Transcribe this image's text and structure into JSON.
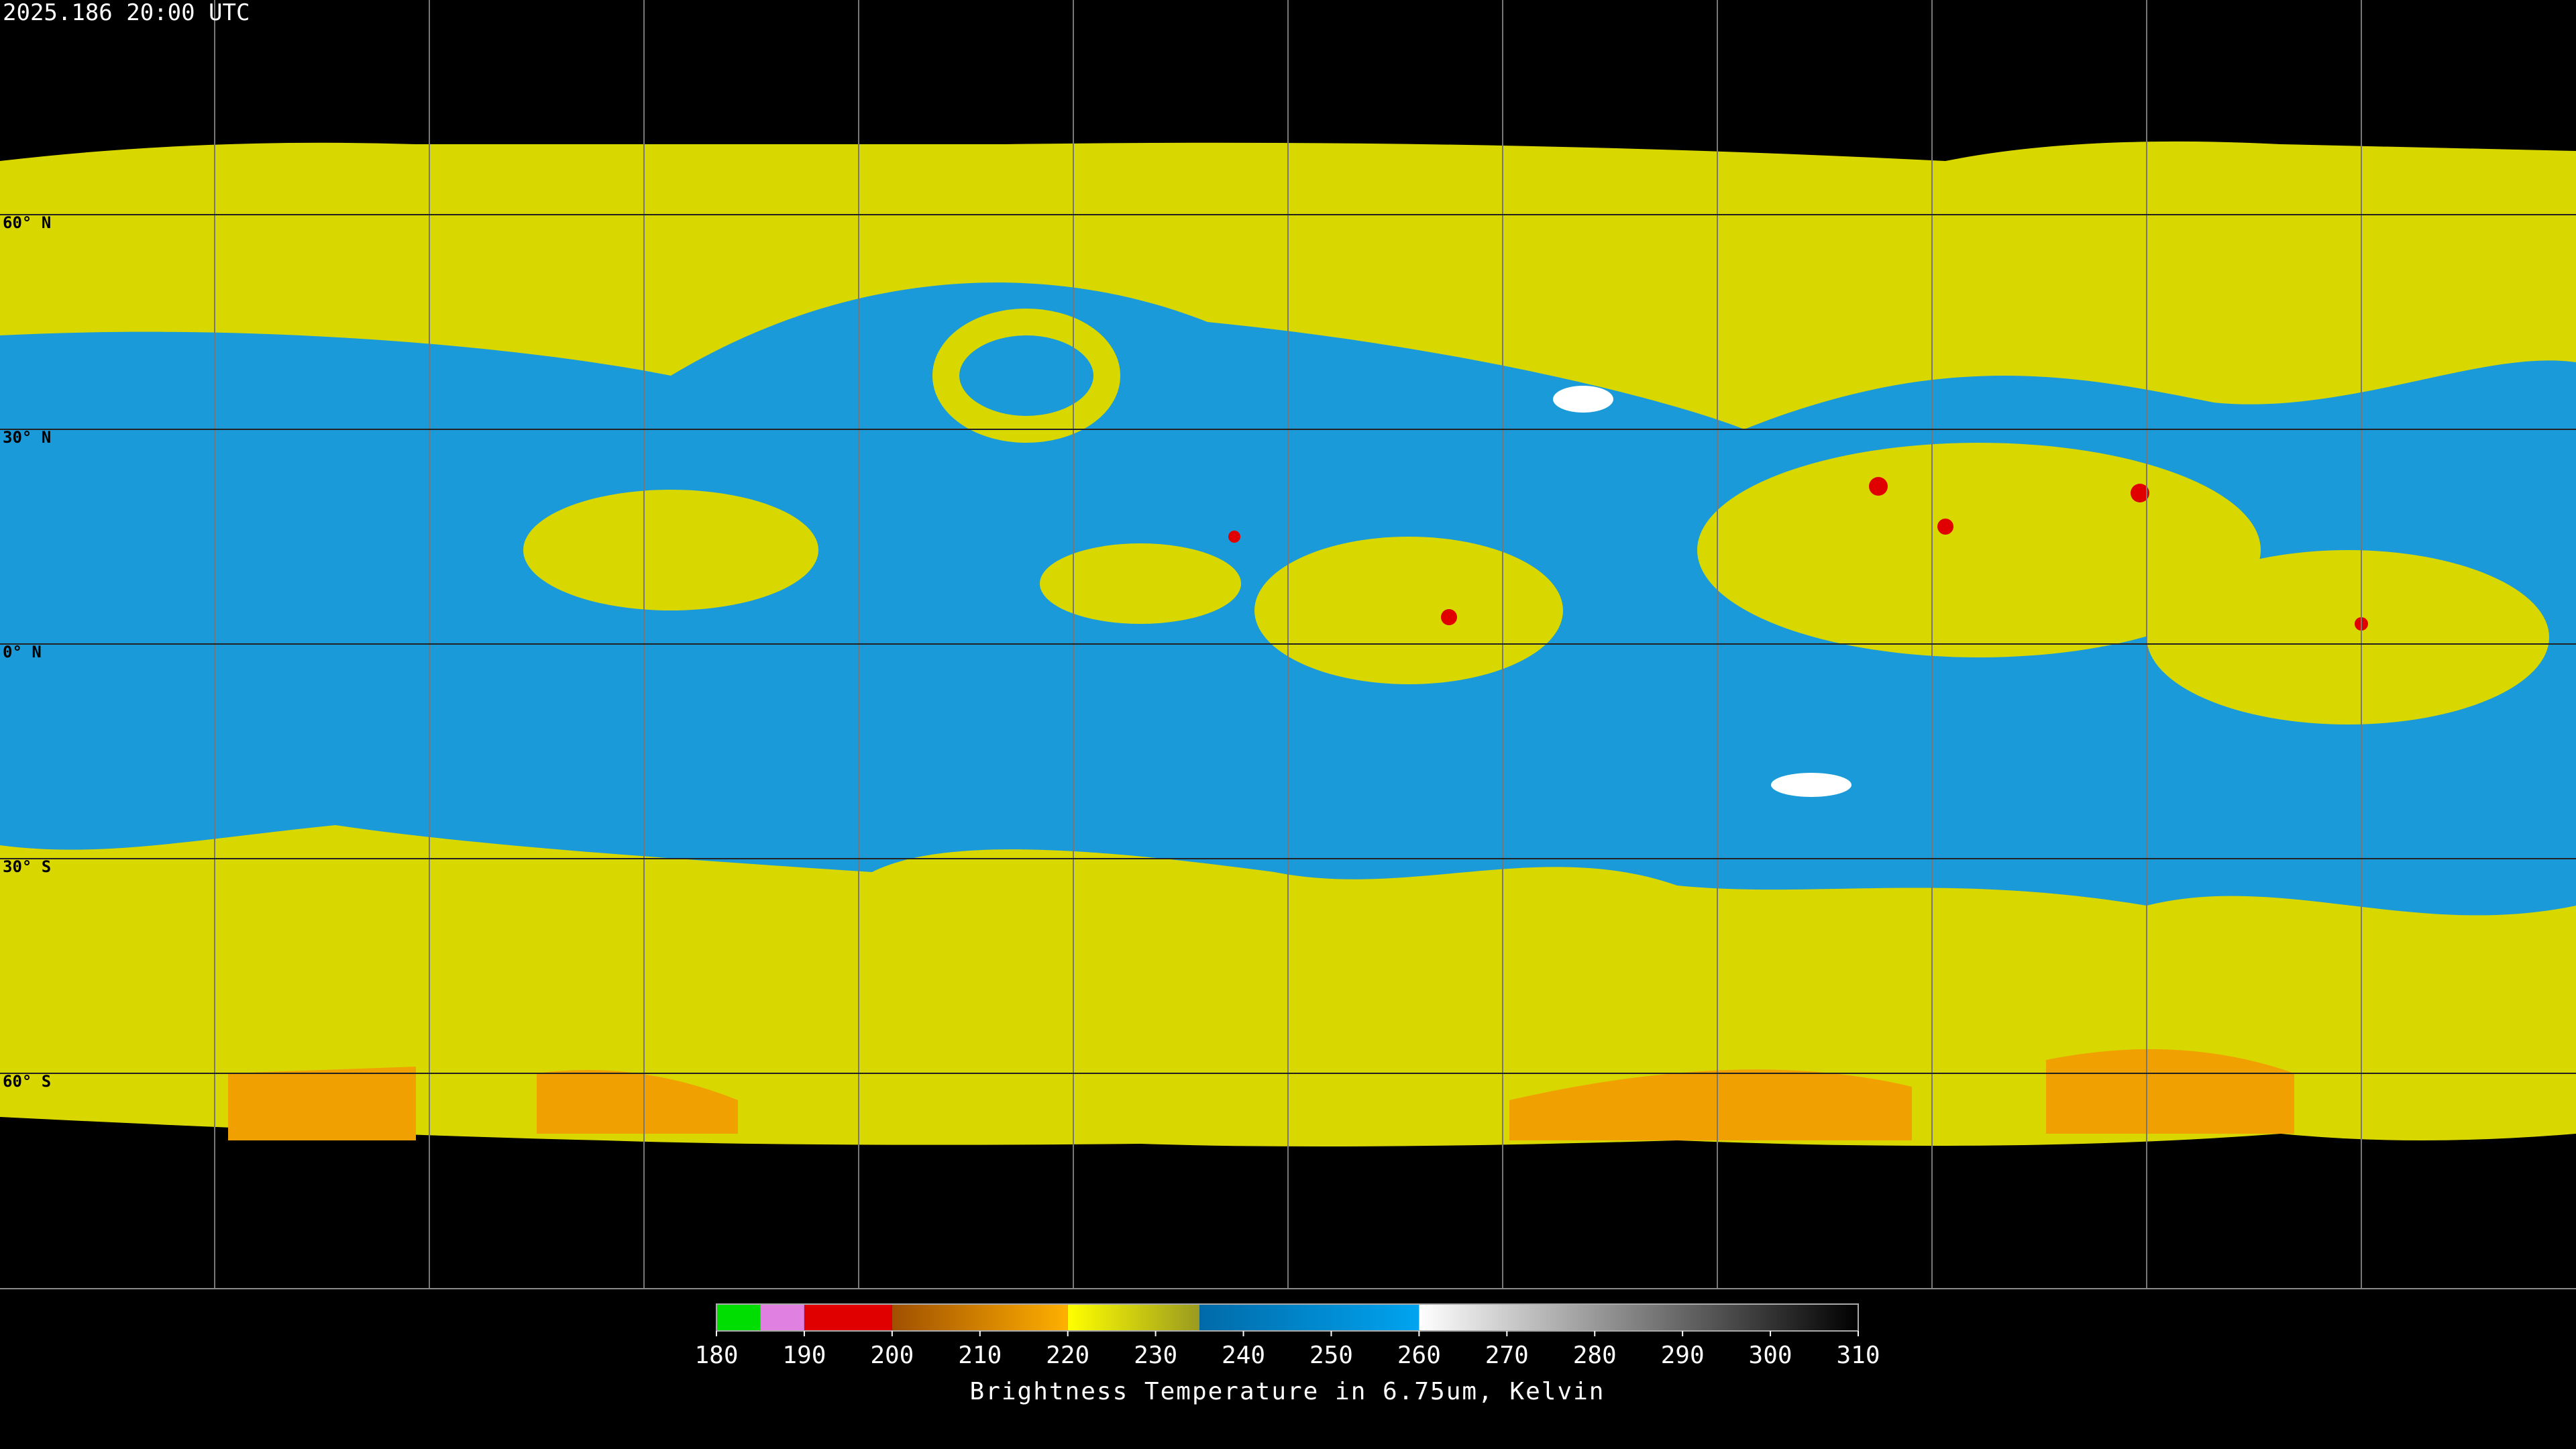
{
  "timestamp": "2025.186 20:00 UTC",
  "lat_labels": [
    "60° N",
    "30° N",
    "0° N",
    "30° S",
    "60° S"
  ],
  "colorbar": {
    "title": "Brightness Temperature in 6.75um, Kelvin",
    "range": [
      180,
      310
    ],
    "ticks": [
      180,
      190,
      200,
      210,
      220,
      230,
      240,
      250,
      260,
      270,
      280,
      290,
      300,
      310
    ],
    "segments": [
      {
        "from": 180,
        "to": 185,
        "colors": [
          "#00dd00",
          "#00dd00"
        ]
      },
      {
        "from": 185,
        "to": 190,
        "colors": [
          "#e080e0",
          "#e080e0"
        ]
      },
      {
        "from": 190,
        "to": 200,
        "colors": [
          "#e00000",
          "#e00000"
        ]
      },
      {
        "from": 200,
        "to": 220,
        "colors": [
          "#a05000",
          "#ffb000"
        ]
      },
      {
        "from": 220,
        "to": 235,
        "colors": [
          "#ffff00",
          "#9a9a20"
        ]
      },
      {
        "from": 235,
        "to": 260,
        "colors": [
          "#006aa8",
          "#00a4f0"
        ]
      },
      {
        "from": 260,
        "to": 310,
        "colors": [
          "#ffffff",
          "#000000"
        ]
      }
    ]
  }
}
